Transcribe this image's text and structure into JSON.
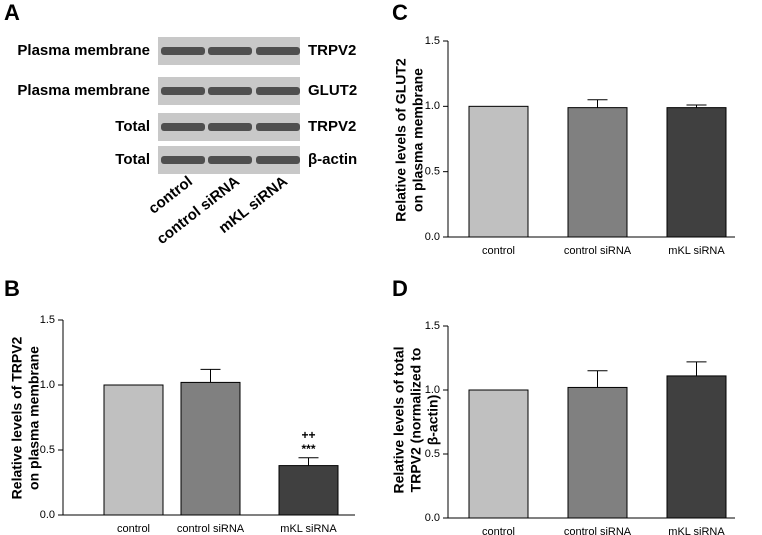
{
  "blot": {
    "panel": "A",
    "rows": [
      {
        "left": "Plasma membrane",
        "right": "TRPV2"
      },
      {
        "left": "Plasma membrane",
        "right": "GLUT2"
      },
      {
        "left": "Total",
        "right": "TRPV2"
      },
      {
        "left": "Total",
        "right": "β-actin"
      }
    ],
    "lanes": [
      "control",
      "control siRNA",
      "mKL siRNA"
    ]
  },
  "chart_data": [
    {
      "type": "bar",
      "panel": "B",
      "ylabel": [
        "Relative levels of TRPV2",
        "on plasma membrane"
      ],
      "categories": [
        "control",
        "control siRNA",
        "mKL siRNA"
      ],
      "values": [
        1.0,
        1.02,
        0.38
      ],
      "errors": [
        0,
        0.1,
        0.06
      ],
      "annotations": [
        null,
        null,
        [
          "++",
          "***"
        ]
      ],
      "colors": [
        "#c0c0c0",
        "#808080",
        "#404040"
      ],
      "ylim": [
        0,
        1.5
      ],
      "yticks": [
        {
          "value": 0,
          "label": "0.0"
        },
        {
          "value": 0.5,
          "label": "0.5"
        },
        {
          "value": 1,
          "label": "1.0"
        },
        {
          "value": 1.5,
          "label": "1.5"
        }
      ]
    },
    {
      "type": "bar",
      "panel": "C",
      "ylabel": [
        "Relative levels of GLUT2",
        "on plasma membrane"
      ],
      "categories": [
        "control",
        "control siRNA",
        "mKL siRNA"
      ],
      "values": [
        1.0,
        0.99,
        0.99
      ],
      "errors": [
        0,
        0.06,
        0.02
      ],
      "colors": [
        "#c0c0c0",
        "#808080",
        "#404040"
      ],
      "ylim": [
        0,
        1.5
      ],
      "yticks": [
        {
          "value": 0,
          "label": "0.0"
        },
        {
          "value": 0.5,
          "label": "0.5"
        },
        {
          "value": 1,
          "label": "1.0"
        },
        {
          "value": 1.5,
          "label": "1.5"
        }
      ]
    },
    {
      "type": "bar",
      "panel": "D",
      "ylabel": [
        "Relative levels of total",
        "TRPV2 (normalized to",
        "β-actin)"
      ],
      "categories": [
        "control",
        "control siRNA",
        "mKL siRNA"
      ],
      "values": [
        1.0,
        1.02,
        1.11
      ],
      "errors": [
        0,
        0.13,
        0.11
      ],
      "colors": [
        "#c0c0c0",
        "#808080",
        "#404040"
      ],
      "ylim": [
        0,
        1.5
      ],
      "yticks": [
        {
          "value": 0,
          "label": "0.0"
        },
        {
          "value": 0.5,
          "label": "0.5"
        },
        {
          "value": 1,
          "label": "1.0"
        },
        {
          "value": 1.5,
          "label": "1.5"
        }
      ]
    }
  ]
}
